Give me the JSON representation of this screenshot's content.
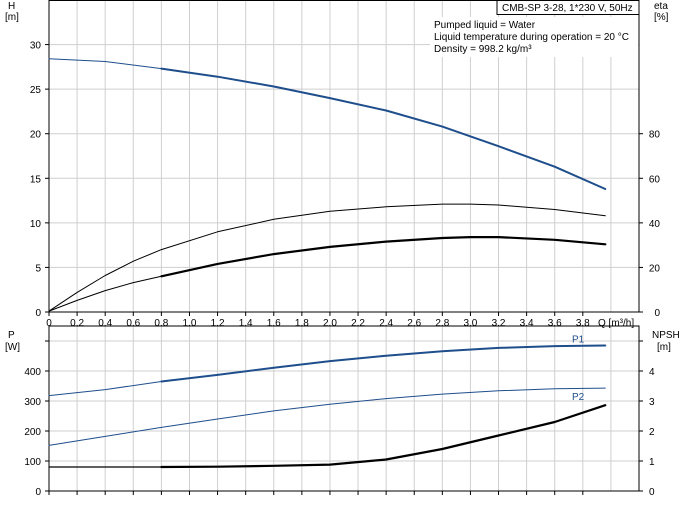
{
  "chart_data": [
    {
      "id": "top",
      "type": "line",
      "title": "CMB-SP 3-28, 1*230 V, 50Hz",
      "info_lines": [
        "Pumped liquid = Water",
        "Liquid temperature during operation = 20 °C",
        "Density = 998.2 kg/m³"
      ],
      "xlabel": "Q [m³/h]",
      "xlim": [
        0,
        4.2
      ],
      "xticks": [
        "0",
        "0.2",
        "0.4",
        "0.6",
        "0.8",
        "1.0",
        "1.2",
        "1.4",
        "1.6",
        "1.8",
        "2.0",
        "2.2",
        "2.4",
        "2.6",
        "2.8",
        "3.0",
        "3.2",
        "3.4",
        "3.6",
        "3.8"
      ],
      "y_left": {
        "label_top": "H",
        "label_unit": "[m]",
        "lim": [
          0,
          35
        ],
        "ticks": [
          "0",
          "5",
          "10",
          "15",
          "20",
          "25",
          "30"
        ]
      },
      "y_right": {
        "label_top": "eta",
        "label_unit": "[%]",
        "lim": [
          0,
          140
        ],
        "ticks": [
          "0",
          "20",
          "40",
          "60",
          "80"
        ]
      },
      "grid": true,
      "series": [
        {
          "key": "head",
          "axis": "left",
          "color": "#1f4e8c",
          "points": [
            [
              0,
              28.4
            ],
            [
              0.4,
              28.1
            ],
            [
              0.8,
              27.3
            ],
            [
              1.2,
              26.4
            ],
            [
              1.6,
              25.3
            ],
            [
              2.0,
              24.0
            ],
            [
              2.4,
              22.6
            ],
            [
              2.8,
              20.8
            ],
            [
              3.2,
              18.6
            ],
            [
              3.6,
              16.3
            ],
            [
              3.96,
              13.8
            ]
          ]
        },
        {
          "key": "efficiency_thin",
          "axis": "left",
          "color": "#000000",
          "points": [
            [
              0,
              0.1
            ],
            [
              0.2,
              2.2
            ],
            [
              0.4,
              4.1
            ],
            [
              0.6,
              5.7
            ],
            [
              0.8,
              7.0
            ],
            [
              1.2,
              9.0
            ],
            [
              1.6,
              10.4
            ],
            [
              2.0,
              11.3
            ],
            [
              2.4,
              11.8
            ],
            [
              2.8,
              12.1
            ],
            [
              3.0,
              12.1
            ],
            [
              3.2,
              12.0
            ],
            [
              3.6,
              11.5
            ],
            [
              3.96,
              10.8
            ]
          ]
        },
        {
          "key": "efficiency_thick",
          "axis": "left",
          "color": "#000000",
          "points": [
            [
              0,
              0.1
            ],
            [
              0.2,
              1.3
            ],
            [
              0.4,
              2.4
            ],
            [
              0.6,
              3.3
            ],
            [
              0.8,
              4.0
            ],
            [
              1.2,
              5.4
            ],
            [
              1.6,
              6.5
            ],
            [
              2.0,
              7.3
            ],
            [
              2.4,
              7.9
            ],
            [
              2.8,
              8.3
            ],
            [
              3.0,
              8.4
            ],
            [
              3.2,
              8.4
            ],
            [
              3.6,
              8.1
            ],
            [
              3.96,
              7.6
            ]
          ]
        }
      ]
    },
    {
      "id": "bottom",
      "type": "line",
      "xlim": [
        0,
        4.2
      ],
      "y_left": {
        "label_top": "P",
        "label_unit": "[W]",
        "lim": [
          0,
          550
        ],
        "ticks": [
          "0",
          "100",
          "200",
          "300",
          "400"
        ]
      },
      "y_right": {
        "label_top": "NPSH",
        "label_unit": "[m]",
        "lim": [
          0,
          5.5
        ],
        "ticks": [
          "0",
          "1",
          "2",
          "3",
          "4"
        ]
      },
      "grid": true,
      "series": [
        {
          "name": "P1",
          "axis": "left",
          "color": "#1f4e8c",
          "points": [
            [
              0,
              318
            ],
            [
              0.4,
              338
            ],
            [
              0.8,
              365
            ],
            [
              1.2,
              387
            ],
            [
              1.6,
              411
            ],
            [
              2.0,
              433
            ],
            [
              2.4,
              451
            ],
            [
              2.8,
              466
            ],
            [
              3.2,
              477
            ],
            [
              3.6,
              483
            ],
            [
              3.96,
              485
            ]
          ]
        },
        {
          "name": "P2",
          "axis": "left",
          "color": "#1f4e8c",
          "points": [
            [
              0,
              152
            ],
            [
              0.4,
              182
            ],
            [
              0.8,
              212
            ],
            [
              1.2,
              240
            ],
            [
              1.6,
              267
            ],
            [
              2.0,
              289
            ],
            [
              2.4,
              308
            ],
            [
              2.8,
              323
            ],
            [
              3.2,
              334
            ],
            [
              3.6,
              341
            ],
            [
              3.96,
              343
            ]
          ]
        },
        {
          "key": "npsh",
          "axis": "right",
          "color": "#000000",
          "points": [
            [
              0,
              0.8
            ],
            [
              0.4,
              0.8
            ],
            [
              0.8,
              0.8
            ],
            [
              1.2,
              0.81
            ],
            [
              1.6,
              0.84
            ],
            [
              2.0,
              0.88
            ],
            [
              2.4,
              1.05
            ],
            [
              2.8,
              1.4
            ],
            [
              3.2,
              1.85
            ],
            [
              3.6,
              2.3
            ],
            [
              3.96,
              2.86
            ]
          ]
        }
      ]
    }
  ]
}
